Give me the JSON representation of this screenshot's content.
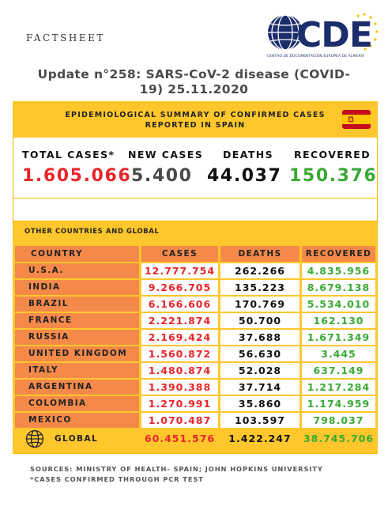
{
  "header": {
    "factsheet": "FACTSHEET",
    "logo_text": "CDE",
    "logo_caption": "CENTRO DE DOCUMENTACIÓN EUROPEA DE ALMERÍA",
    "update_line1": "Update n°258: SARS-CoV-2 disease (COVID-",
    "update_line2": "19) 25.11.2020"
  },
  "summary": {
    "title_line1": "EPIDEMIOLOGICAL SUMMARY OF CONFIRMED CASES",
    "title_line2": "REPORTED IN SPAIN",
    "labels": {
      "total_cases": "TOTAL CASES*",
      "new_cases": "NEW CASES",
      "deaths": "DEATHS",
      "recovered": "RECOVERED"
    },
    "values": {
      "total_cases": "1.605.066",
      "new_cases": "5.400",
      "deaths": "44.037",
      "recovered": "150.376"
    }
  },
  "other": {
    "title": "OTHER COUNTRIES AND GLOBAL",
    "columns": [
      "COUNTRY",
      "CASES",
      "DEATHS",
      "RECOVERED"
    ],
    "rows": [
      {
        "country": "U.S.A.",
        "cases": "12.777.754",
        "deaths": "262.266",
        "recovered": "4.835.956"
      },
      {
        "country": "INDIA",
        "cases": "9.266.705",
        "deaths": "135.223",
        "recovered": "8.679.138"
      },
      {
        "country": "BRAZIL",
        "cases": "6.166.606",
        "deaths": "170.769",
        "recovered": "5.534.010"
      },
      {
        "country": "FRANCE",
        "cases": "2.221.874",
        "deaths": "50.700",
        "recovered": "162.130"
      },
      {
        "country": "RUSSIA",
        "cases": "2.169.424",
        "deaths": "37.688",
        "recovered": "1.671.349"
      },
      {
        "country": "UNITED KINGDOM",
        "cases": "1.560.872",
        "deaths": "56.630",
        "recovered": "3.445"
      },
      {
        "country": "ITALY",
        "cases": "1.480.874",
        "deaths": "52.028",
        "recovered": "637.149"
      },
      {
        "country": "ARGENTINA",
        "cases": "1.390.388",
        "deaths": "37.714",
        "recovered": "1.217.284"
      },
      {
        "country": "COLOMBIA",
        "cases": "1.270.991",
        "deaths": "35.860",
        "recovered": "1.174.959"
      },
      {
        "country": "MEXICO",
        "cases": "1.070.487",
        "deaths": "103.597",
        "recovered": "798.037"
      }
    ],
    "global": {
      "label": "GLOBAL",
      "cases": "60.451.576",
      "deaths": "1.422.247",
      "recovered": "38.745.706"
    }
  },
  "footer": {
    "sources": "SOURCES: MINISTRY OF HEALTH- SPAIN; JOHN HOPKINS UNIVERSITY",
    "note": "*CASES CONFIRMED THROUGH PCR TEST"
  },
  "colors": {
    "accent_yellow": "#ffc72c",
    "orange": "#f5894a",
    "red": "#e8262a",
    "green": "#3aaa35",
    "logo_blue": "#1b2e6b"
  }
}
